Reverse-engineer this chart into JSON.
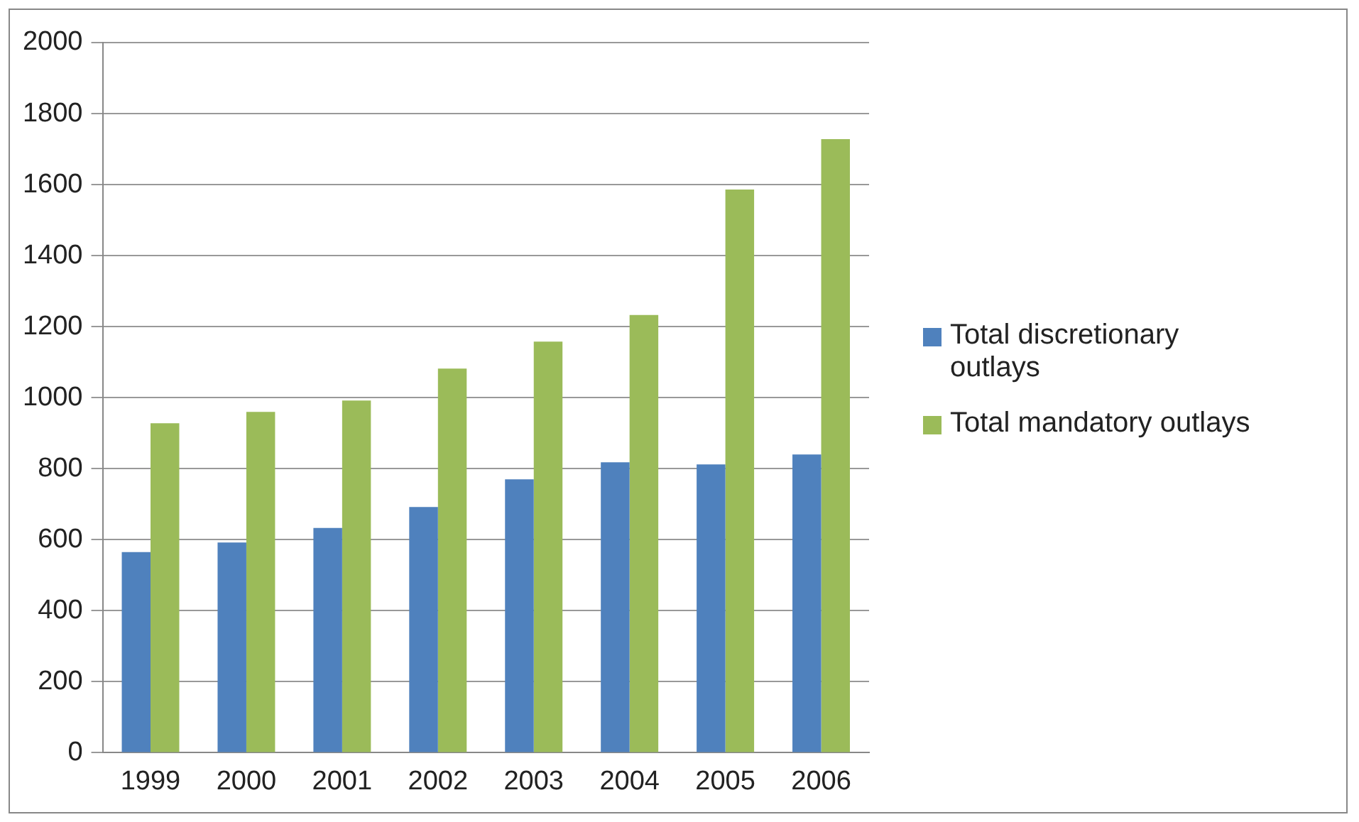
{
  "chart_data": {
    "type": "bar",
    "categories": [
      "1999",
      "2000",
      "2001",
      "2002",
      "2003",
      "2004",
      "2005",
      "2006"
    ],
    "series": [
      {
        "name": "Total discretionary outlays",
        "color": "#4f81bd",
        "values": [
          565,
          592,
          633,
          692,
          770,
          818,
          812,
          840
        ]
      },
      {
        "name": "Total mandatory outlays",
        "color": "#9bbb59",
        "values": [
          928,
          960,
          992,
          1082,
          1158,
          1233,
          1586,
          1728
        ]
      }
    ],
    "ylim": [
      0,
      2000
    ],
    "yticks": [
      0,
      200,
      400,
      600,
      800,
      1000,
      1200,
      1400,
      1600,
      1800,
      2000
    ],
    "grid": "y",
    "legend": "right"
  }
}
